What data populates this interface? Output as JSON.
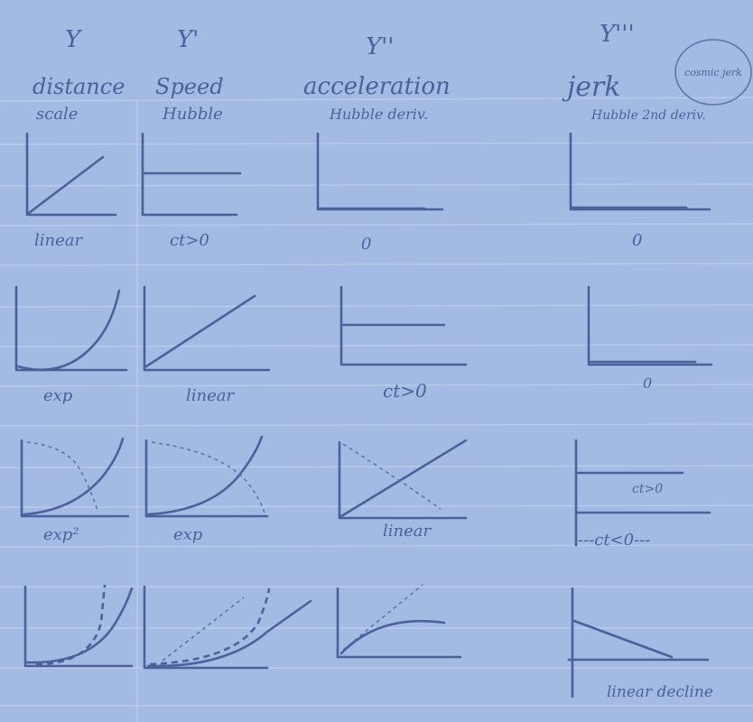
{
  "headers": [
    {
      "symbol": "Y",
      "quantity": "distance",
      "hubble": "scale"
    },
    {
      "symbol": "Y'",
      "quantity": "Speed",
      "hubble": "Hubble"
    },
    {
      "symbol": "Y''",
      "quantity": "acceleration",
      "hubble": "Hubble deriv."
    },
    {
      "symbol": "Y'''",
      "quantity": "jerk",
      "hubble": "Hubble 2nd deriv."
    }
  ],
  "note_circled": "cosmic jerk",
  "rows": [
    {
      "labels": [
        "linear",
        "ct>0",
        "0",
        "0"
      ]
    },
    {
      "labels": [
        "exp",
        "linear",
        "ct>0",
        "0"
      ]
    },
    {
      "labels": [
        "exp²",
        "exp",
        "linear",
        "ct>0",
        "---ct<0---"
      ]
    },
    {
      "labels": [
        "",
        "",
        "",
        "linear decline"
      ]
    }
  ],
  "colors": {
    "paper": "#a3bbe3",
    "ink": "#4c619c",
    "rule": "#b9cbea"
  }
}
